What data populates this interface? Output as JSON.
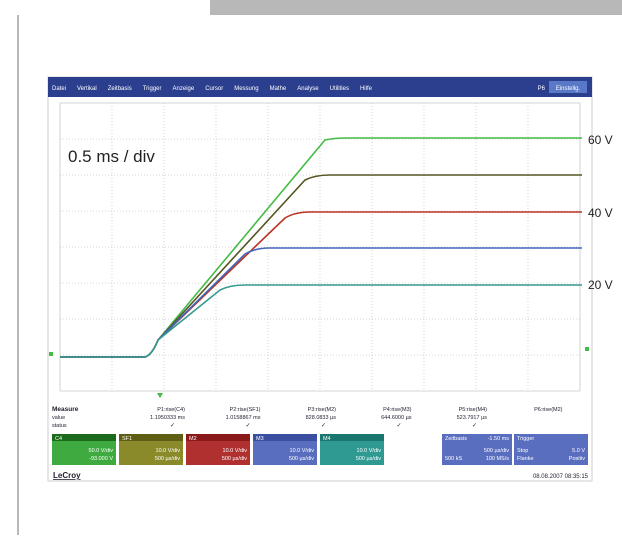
{
  "menu": [
    "Datei",
    "Vertikal",
    "Zeitbasis",
    "Trigger",
    "Anzeige",
    "Cursor",
    "Messung",
    "Mathe",
    "Analyse",
    "Utilities",
    "Hilfe"
  ],
  "menu_right": [
    "P6",
    "Einstellg."
  ],
  "annotation": "0.5 ms / div",
  "level_labels": [
    "60 V",
    "40 V",
    "20 V"
  ],
  "measure": {
    "row_labels": [
      "Measure",
      "value",
      "status"
    ],
    "columns": [
      {
        "name": "P1:rise(C4)",
        "value": "1.1950333 ms",
        "status": "✓"
      },
      {
        "name": "P2:rise(SF1)",
        "value": "1.0158867 ms",
        "status": "✓"
      },
      {
        "name": "P3:rise(M2)",
        "value": "828.0833 µs",
        "status": "✓"
      },
      {
        "name": "P4:rise(M3)",
        "value": "644.6000 µs",
        "status": "✓"
      },
      {
        "name": "P5:rise(M4)",
        "value": "523.7917 µs",
        "status": "✓"
      },
      {
        "name": "P6:rise(M2)",
        "value": "",
        "status": ""
      }
    ]
  },
  "channels": [
    {
      "name": "C4",
      "line1": "50.0 V/div",
      "line2": "-93.000 V"
    },
    {
      "name": "SF1",
      "line1": "10.0 V/div",
      "line2": "500 µs/div"
    },
    {
      "name": "M2",
      "line1": "10.0 V/div",
      "line2": "500 µs/div"
    },
    {
      "name": "M3",
      "line1": "10.0 V/div",
      "line2": "500 µs/div"
    },
    {
      "name": "M4",
      "line1": "10.0 V/div",
      "line2": "500 µs/div"
    }
  ],
  "timebase": {
    "title": "Zeitbasis",
    "offset": "-1.50 ms",
    "line1": "500 µs/div",
    "line2a": "500 kS",
    "line2b": "100 MS/s"
  },
  "trigger": {
    "title": "Trigger",
    "line1a": "Stop",
    "line1b": "5.0 V",
    "line2a": "Flanke",
    "line2b": "Positiv"
  },
  "footer": {
    "brand": "LeCroy",
    "timestamp": "08.08.2007 08:35:15"
  }
}
